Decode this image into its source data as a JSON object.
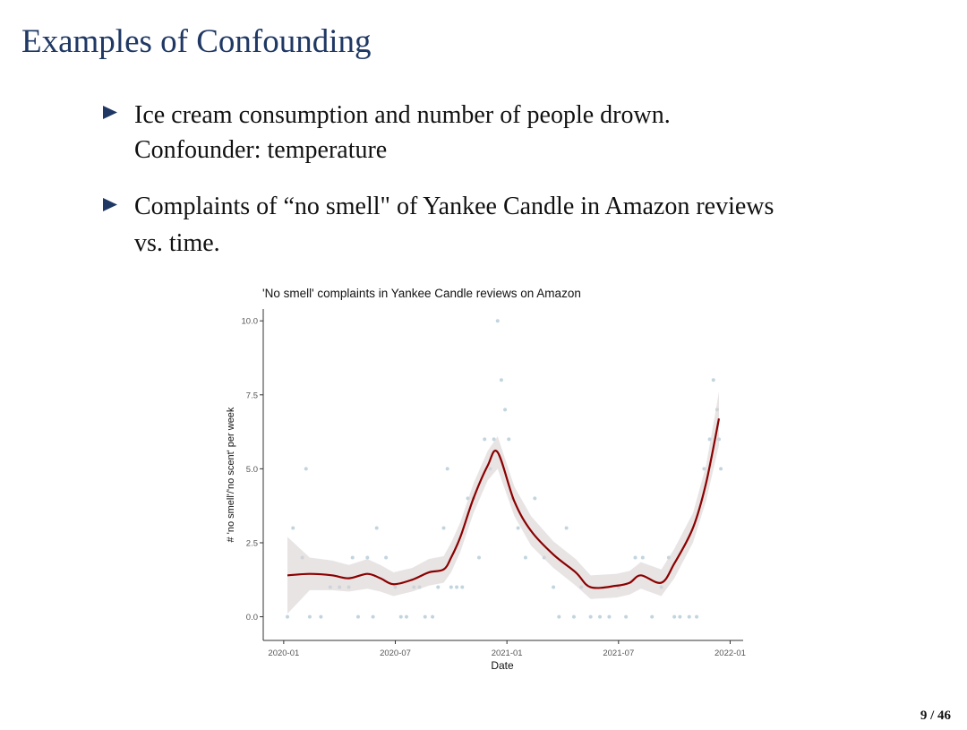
{
  "title": "Examples of Confounding",
  "bullets": [
    [
      "Ice cream consumption and number of people drown.",
      "Confounder: temperature"
    ],
    [
      "Complaints of “no smell\" of Yankee Candle in Amazon reviews",
      "vs. time."
    ]
  ],
  "page_number": "9 / 46",
  "chart_data": {
    "type": "scatter",
    "title": "'No smell' complaints in Yankee Candle reviews on Amazon",
    "xlabel": "Date",
    "ylabel": "# 'no smell'/'no scent' per week",
    "xlim": [
      -1.1,
      24.7
    ],
    "ylim": [
      -0.8,
      10.4
    ],
    "xticks": [
      {
        "value": 0,
        "label": "2020-01"
      },
      {
        "value": 6,
        "label": "2020-07"
      },
      {
        "value": 12,
        "label": "2021-01"
      },
      {
        "value": 18,
        "label": "2021-07"
      },
      {
        "value": 24,
        "label": "2022-01"
      }
    ],
    "yticks": [
      {
        "value": 0,
        "label": "0.0"
      },
      {
        "value": 2.5,
        "label": "2.5"
      },
      {
        "value": 5,
        "label": "5.0"
      },
      {
        "value": 7.5,
        "label": "7.5"
      },
      {
        "value": 10,
        "label": "10.0"
      }
    ],
    "series": [
      {
        "kind": "points",
        "color": "#8fb3c4",
        "x": [
          0.2,
          0.5,
          1.0,
          1.2,
          1.4,
          2.0,
          2.5,
          3.0,
          3.5,
          3.7,
          4.0,
          4.5,
          4.8,
          5.0,
          5.5,
          6.0,
          6.3,
          6.6,
          7.0,
          7.3,
          7.6,
          8.0,
          8.3,
          8.6,
          8.8,
          9.0,
          9.3,
          9.6,
          9.9,
          10.2,
          10.5,
          10.8,
          11.1,
          11.3,
          11.5,
          11.7,
          11.9,
          12.1,
          12.3,
          12.6,
          13.0,
          13.5,
          14.0,
          14.5,
          14.8,
          15.2,
          15.6,
          16.0,
          16.5,
          17.0,
          17.5,
          18.0,
          18.4,
          18.9,
          19.3,
          19.8,
          20.3,
          20.7,
          21.0,
          21.3,
          21.8,
          22.2,
          22.6,
          22.9,
          23.1,
          23.3,
          23.4,
          23.5
        ],
        "values": [
          0,
          3,
          2,
          5,
          0,
          0,
          1,
          1,
          1,
          2,
          0,
          2,
          0,
          3,
          2,
          1,
          0,
          0,
          1,
          1,
          0,
          0,
          1,
          3,
          5,
          1,
          1,
          1,
          4,
          4,
          2,
          6,
          5,
          6,
          10,
          8,
          7,
          6,
          4,
          3,
          2,
          4,
          2,
          1,
          0,
          3,
          0,
          1,
          0,
          0,
          0,
          1,
          0,
          2,
          2,
          0,
          1,
          2,
          0,
          0,
          0,
          0,
          5,
          6,
          8,
          7,
          6,
          5
        ]
      },
      {
        "kind": "smooth",
        "color": "#8b0000",
        "band_color": "#d8d2d2",
        "x": [
          0.2,
          1.4,
          2.6,
          3.5,
          4.5,
          5.2,
          5.9,
          6.9,
          7.8,
          8.6,
          9.0,
          9.5,
          10.2,
          10.96,
          11.5,
          12.4,
          13.3,
          14.5,
          15.7,
          16.5,
          17.9,
          18.6,
          19.2,
          20.3,
          21.0,
          22.0,
          22.7,
          23.4
        ],
        "values": [
          1.4,
          1.45,
          1.4,
          1.3,
          1.45,
          1.3,
          1.1,
          1.25,
          1.5,
          1.6,
          2.0,
          2.7,
          4.0,
          5.1,
          5.56,
          3.9,
          2.9,
          2.1,
          1.5,
          1.0,
          1.05,
          1.15,
          1.4,
          1.15,
          1.8,
          3.0,
          4.5,
          6.7
        ],
        "lower": [
          0.1,
          0.9,
          0.9,
          0.85,
          0.95,
          0.85,
          0.7,
          0.85,
          1.05,
          1.15,
          1.5,
          2.2,
          3.5,
          4.6,
          5.0,
          3.4,
          2.4,
          1.65,
          1.05,
          0.6,
          0.65,
          0.75,
          0.95,
          0.7,
          1.3,
          2.5,
          3.9,
          5.8
        ],
        "upper": [
          2.7,
          2.0,
          1.9,
          1.75,
          1.95,
          1.75,
          1.5,
          1.65,
          1.95,
          2.05,
          2.5,
          3.2,
          4.5,
          5.6,
          6.1,
          4.4,
          3.4,
          2.55,
          1.95,
          1.4,
          1.45,
          1.55,
          1.85,
          1.6,
          2.3,
          3.5,
          5.1,
          7.6
        ]
      }
    ]
  }
}
